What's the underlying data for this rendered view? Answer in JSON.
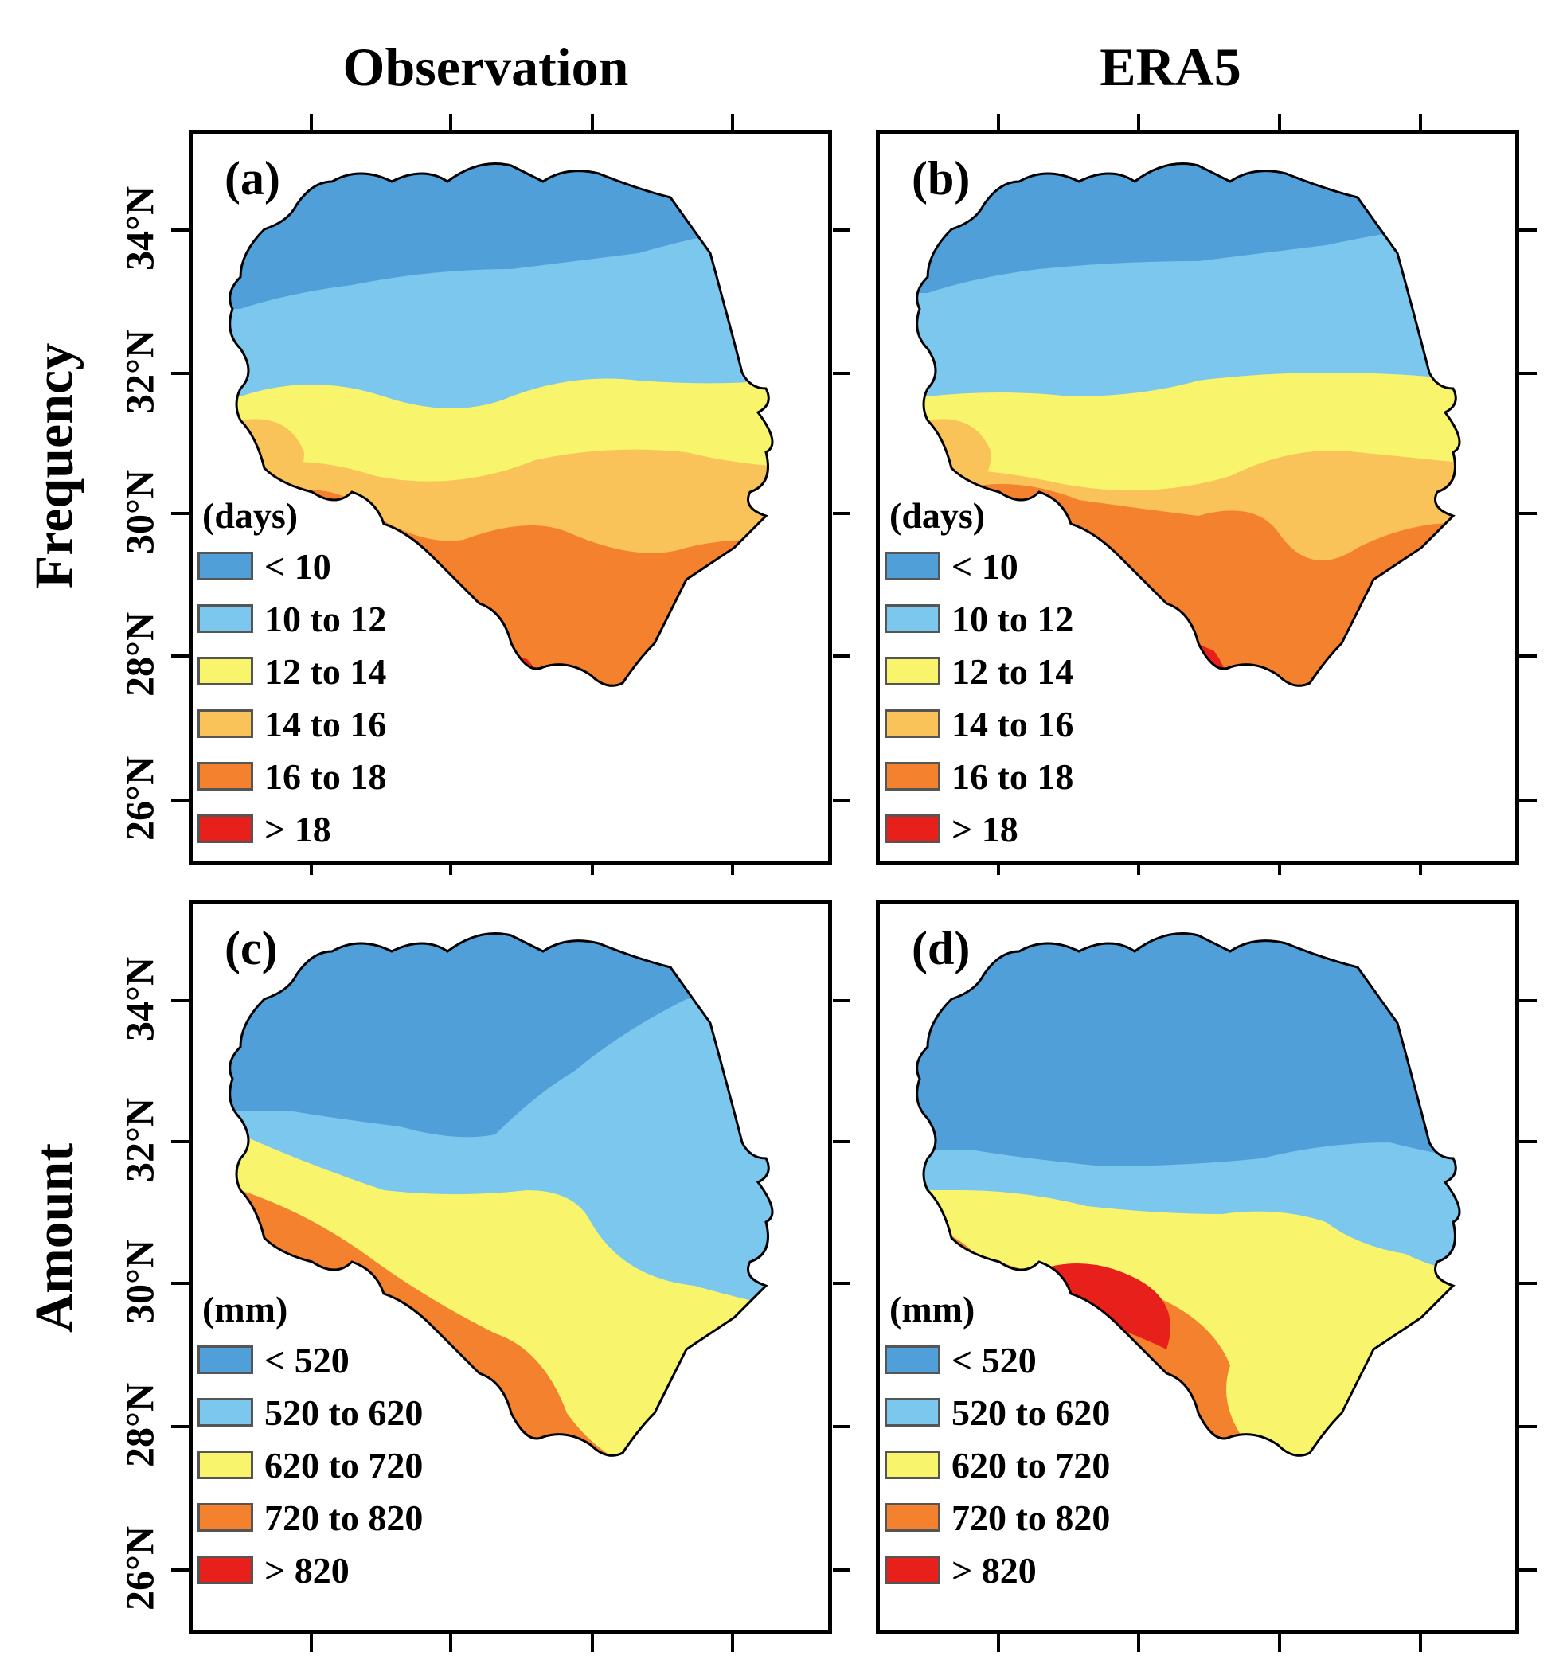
{
  "columns": {
    "left": "Observation",
    "right": "ERA5"
  },
  "rows": {
    "top": "Frequency",
    "bottom": "Amount"
  },
  "lat_labels": [
    "34°N",
    "32°N",
    "30°N",
    "28°N",
    "26°N"
  ],
  "colors": {
    "c1": "#519fd8",
    "c2": "#7cc7ee",
    "c3": "#f8f56c",
    "c4": "#f9c35a",
    "c5": "#f3812d",
    "c6": "#e7201c"
  },
  "panels": {
    "a": {
      "label": "(a)"
    },
    "b": {
      "label": "(b)"
    },
    "c": {
      "label": "(c)"
    },
    "d": {
      "label": "(d)"
    }
  },
  "legends": {
    "frequency": {
      "unit": "(days)",
      "items": [
        {
          "label": "< 10",
          "color": "#519fd8"
        },
        {
          "label": "10 to 12",
          "color": "#7cc7ee"
        },
        {
          "label": "12 to 14",
          "color": "#f8f56c"
        },
        {
          "label": "14 to 16",
          "color": "#f9c35a"
        },
        {
          "label": "16 to 18",
          "color": "#f3812d"
        },
        {
          "label": "> 18",
          "color": "#e7201c"
        }
      ]
    },
    "amount": {
      "unit": "(mm)",
      "items": [
        {
          "label": "< 520",
          "color": "#519fd8"
        },
        {
          "label": "520 to 620",
          "color": "#7cc7ee"
        },
        {
          "label": "620 to 720",
          "color": "#f8f56c"
        },
        {
          "label": "720 to 820",
          "color": "#f3812d"
        },
        {
          "label": "> 820",
          "color": "#e7201c"
        }
      ]
    }
  }
}
